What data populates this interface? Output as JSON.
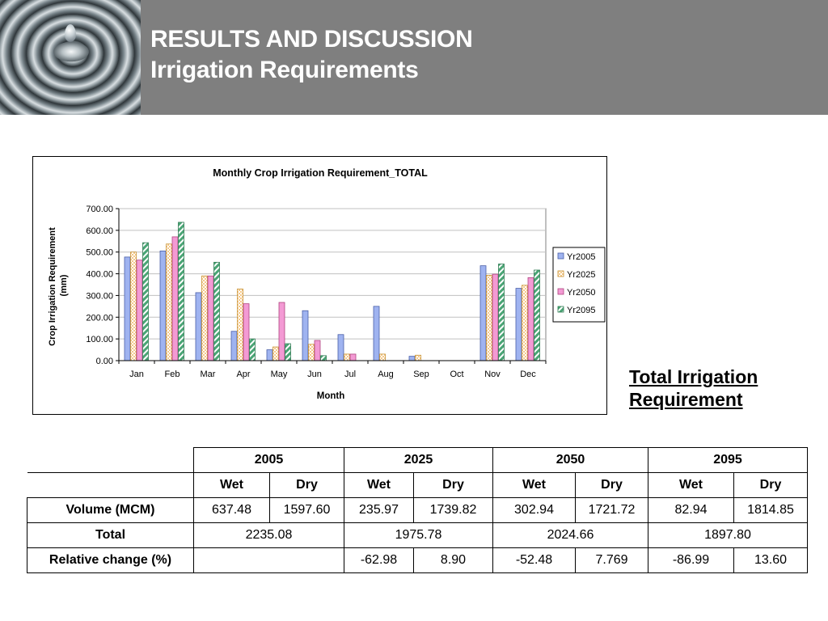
{
  "header": {
    "title_line1": "RESULTS AND DISCUSSION",
    "title_line2": "Irrigation Requirements"
  },
  "side_label": "Total Irrigation Requirement",
  "chart_data": {
    "type": "bar",
    "title": "Monthly Crop Irrigation Requirement_TOTAL",
    "xlabel": "Month",
    "ylabel": "Crop Irrigation Requirement (mm)",
    "ylim": [
      0,
      700
    ],
    "yticks": [
      "0.00",
      "100.00",
      "200.00",
      "300.00",
      "400.00",
      "500.00",
      "600.00",
      "700.00"
    ],
    "grid": true,
    "legend_position": "right",
    "categories": [
      "Jan",
      "Feb",
      "Mar",
      "Apr",
      "May",
      "Jun",
      "Jul",
      "Aug",
      "Sep",
      "Oct",
      "Nov",
      "Dec"
    ],
    "series": [
      {
        "name": "Yr2005",
        "color": "#9fb3f0",
        "pattern": "solid",
        "values": [
          477,
          505,
          313,
          135,
          50,
          230,
          120,
          250,
          20,
          0,
          437,
          333
        ]
      },
      {
        "name": "Yr2025",
        "color": "#f5c98a",
        "pattern": "checker",
        "values": [
          500,
          537,
          390,
          330,
          63,
          75,
          30,
          30,
          25,
          0,
          393,
          347
        ]
      },
      {
        "name": "Yr2050",
        "color": "#f39ad4",
        "pattern": "solid",
        "values": [
          463,
          570,
          390,
          262,
          268,
          93,
          30,
          0,
          0,
          0,
          398,
          382
        ]
      },
      {
        "name": "Yr2095",
        "color": "#9fd8b8",
        "pattern": "diagonal",
        "values": [
          543,
          637,
          453,
          100,
          78,
          23,
          0,
          0,
          0,
          0,
          445,
          417
        ]
      }
    ]
  },
  "table": {
    "years": [
      "2005",
      "2025",
      "2050",
      "2095"
    ],
    "sub": [
      "Wet",
      "Dry",
      "Wet",
      "Dry",
      "Wet",
      "Dry",
      "Wet",
      "Dry"
    ],
    "volume_label": "Volume (MCM)",
    "volume": [
      "637.48",
      "1597.60",
      "235.97",
      "1739.82",
      "302.94",
      "1721.72",
      "82.94",
      "1814.85"
    ],
    "total_label": "Total",
    "total": [
      "2235.08",
      "1975.78",
      "2024.66",
      "1897.80"
    ],
    "relchange_label": "Relative change (%)",
    "relchange": [
      "",
      "-62.98",
      "8.90",
      "-52.48",
      "7.769",
      "-86.99",
      "13.60"
    ]
  }
}
